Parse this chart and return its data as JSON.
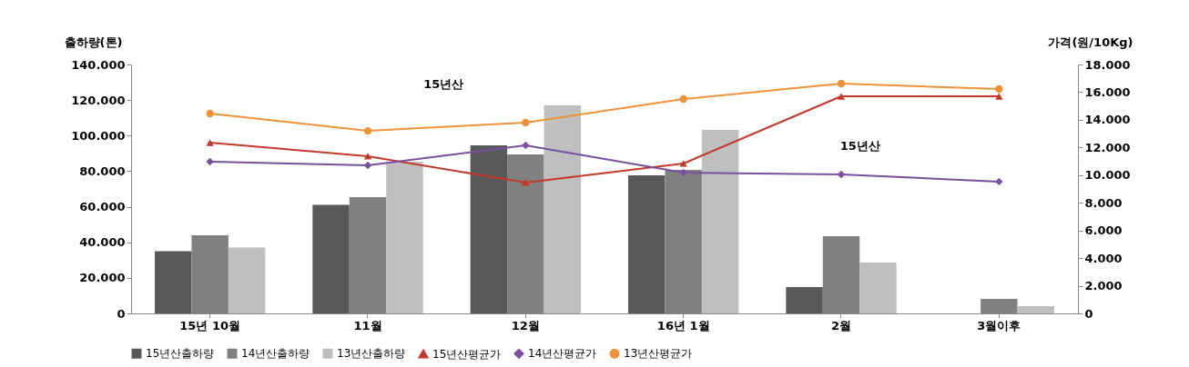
{
  "chart_data": {
    "type": "bar",
    "ylabel": "출하량(톤)",
    "y2label": "가격(원/10Kg)",
    "categories": [
      "15년 10월",
      "11월",
      "12월",
      "16년 1월",
      "2월",
      "3월이후"
    ],
    "series": [
      {
        "name": "15년산출하량",
        "color": "#595959",
        "values": [
          35000,
          61000,
          94500,
          77700,
          14800,
          null
        ]
      },
      {
        "name": "14년산출하량",
        "color": "#808080",
        "values": [
          44000,
          65400,
          89400,
          80700,
          43400,
          8200
        ]
      },
      {
        "name": "13년산출하량",
        "color": "#bfbfbf",
        "values": [
          37000,
          85300,
          117000,
          103200,
          28600,
          4100
        ]
      },
      {
        "name": "15년산평균가",
        "type": "line",
        "axis": "y2",
        "marker": "triangle",
        "color": "#c0392b",
        "values": [
          12350,
          11370,
          9460,
          10840,
          15700,
          15700
        ]
      },
      {
        "name": "14년산평균가",
        "type": "line",
        "axis": "y2",
        "marker": "diamond",
        "color": "#7a4f9e",
        "values": [
          10970,
          10710,
          12150,
          10180,
          10050,
          9530
        ]
      },
      {
        "name": "13년산평균가",
        "type": "line",
        "axis": "y2",
        "marker": "circle",
        "color": "#f0923a",
        "values": [
          14450,
          13200,
          13800,
          15500,
          16620,
          16230
        ]
      }
    ],
    "ylim": [
      0,
      140000
    ],
    "yticks": [
      {
        "value": 0,
        "label": "0"
      },
      {
        "value": 20000,
        "label": "20.000"
      },
      {
        "value": 40000,
        "label": "40.000"
      },
      {
        "value": 60000,
        "label": "60.000"
      },
      {
        "value": 80000,
        "label": "80.000"
      },
      {
        "value": 100000,
        "label": "100.000"
      },
      {
        "value": 120000,
        "label": "120.000"
      },
      {
        "value": 140000,
        "label": "140.000"
      }
    ],
    "y2lim": [
      0,
      18000
    ],
    "y2ticks": [
      {
        "value": 0,
        "label": "0"
      },
      {
        "value": 2000,
        "label": "2.000"
      },
      {
        "value": 4000,
        "label": "4.000"
      },
      {
        "value": 6000,
        "label": "6.000"
      },
      {
        "value": 8000,
        "label": "8.000"
      },
      {
        "value": 10000,
        "label": "10.000"
      },
      {
        "value": 12000,
        "label": "12.000"
      },
      {
        "value": 14000,
        "label": "14.000"
      },
      {
        "value": 16000,
        "label": "16.000"
      },
      {
        "value": 18000,
        "label": "18.000"
      }
    ],
    "annotations": [
      "15년산",
      "15년산"
    ],
    "legend": "bottom",
    "grid": false
  }
}
